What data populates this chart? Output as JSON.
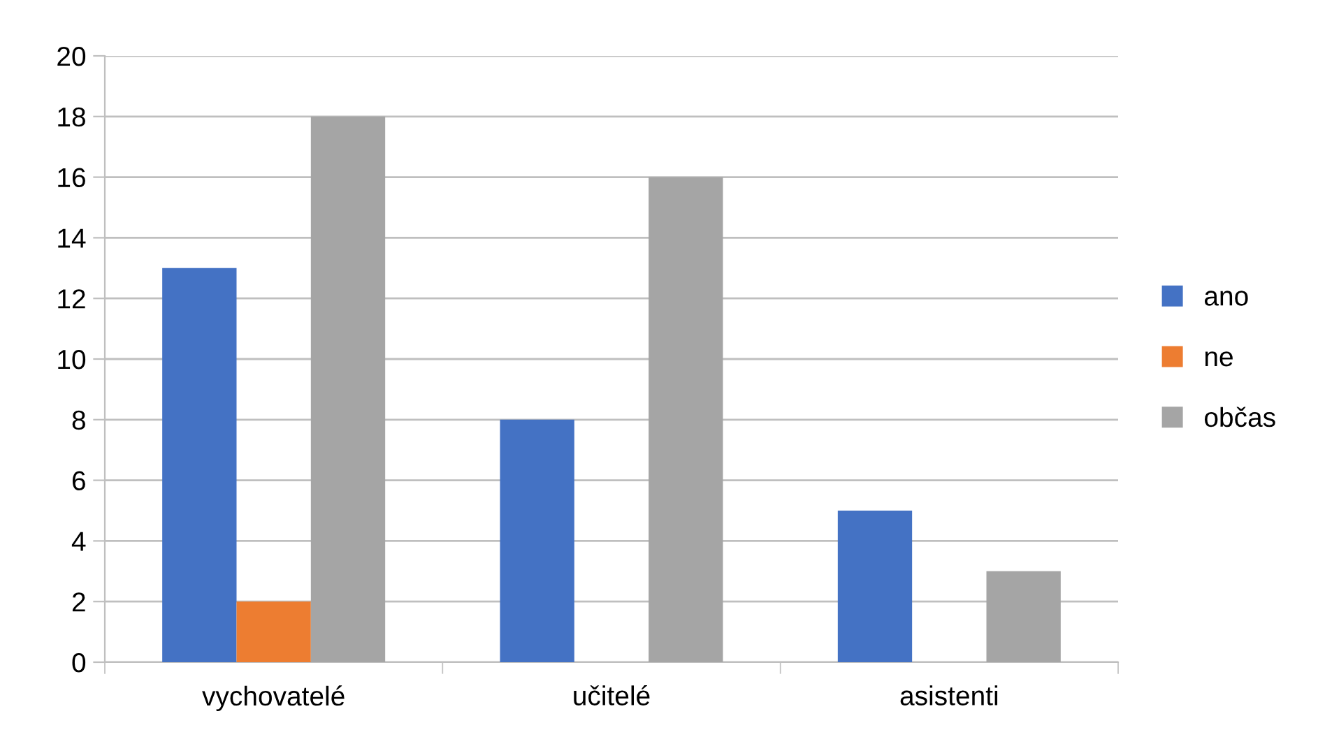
{
  "chart_data": {
    "type": "bar",
    "categories": [
      "vychovatelé",
      "učitelé",
      "asistenti"
    ],
    "series": [
      {
        "name": "ano",
        "color": "#4472c4",
        "values": [
          13,
          8,
          5
        ]
      },
      {
        "name": "ne",
        "color": "#ed7d31",
        "values": [
          2,
          0,
          0
        ]
      },
      {
        "name": "občas",
        "color": "#a5a5a5",
        "values": [
          18,
          16,
          3
        ]
      }
    ],
    "ylim": [
      0,
      20
    ],
    "yticks": [
      0,
      2,
      4,
      6,
      8,
      10,
      12,
      14,
      16,
      18,
      20
    ],
    "grid": "y",
    "legend": "right"
  }
}
